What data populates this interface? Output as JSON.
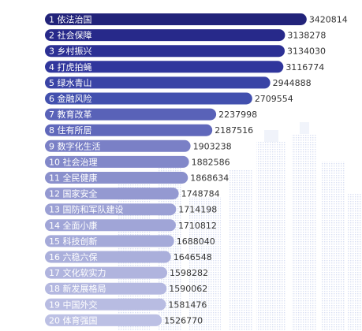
{
  "chart_data": {
    "type": "bar",
    "orientation": "horizontal",
    "categories": [
      "依法治国",
      "社会保障",
      "乡村振兴",
      "打虎拍蝇",
      "绿水青山",
      "金融风险",
      "教育改革",
      "住有所居",
      "数字化生活",
      "社会治理",
      "全民健康",
      "国家安全",
      "国防和军队建设",
      "全面小康",
      "科技创新",
      "六稳六保",
      "文化软实力",
      "新发展格局",
      "中国外交",
      "体育强国"
    ],
    "ranks": [
      1,
      2,
      3,
      4,
      5,
      6,
      7,
      8,
      9,
      10,
      11,
      12,
      13,
      14,
      15,
      16,
      17,
      18,
      19,
      20
    ],
    "values": [
      3420814,
      3138278,
      3134030,
      3116774,
      2944888,
      2709554,
      2237998,
      2187516,
      1903238,
      1882586,
      1868634,
      1748784,
      1714198,
      1710812,
      1688040,
      1646548,
      1598282,
      1590062,
      1581476,
      1526770
    ],
    "bar_colors": [
      "#22237a",
      "#27298a",
      "#2c3094",
      "#30369c",
      "#3a44a6",
      "#4250ae",
      "#5962b8",
      "#6068bb",
      "#7a80c6",
      "#8288c9",
      "#8a90cc",
      "#9499d1",
      "#9ba0d4",
      "#a0a5d7",
      "#a5aad9",
      "#aaafdb",
      "#b0b4de",
      "#b4b8e0",
      "#b8bce2",
      "#bcc0e4"
    ],
    "title": "",
    "xlabel": "",
    "ylabel": "",
    "grid": false,
    "legend": "none"
  }
}
